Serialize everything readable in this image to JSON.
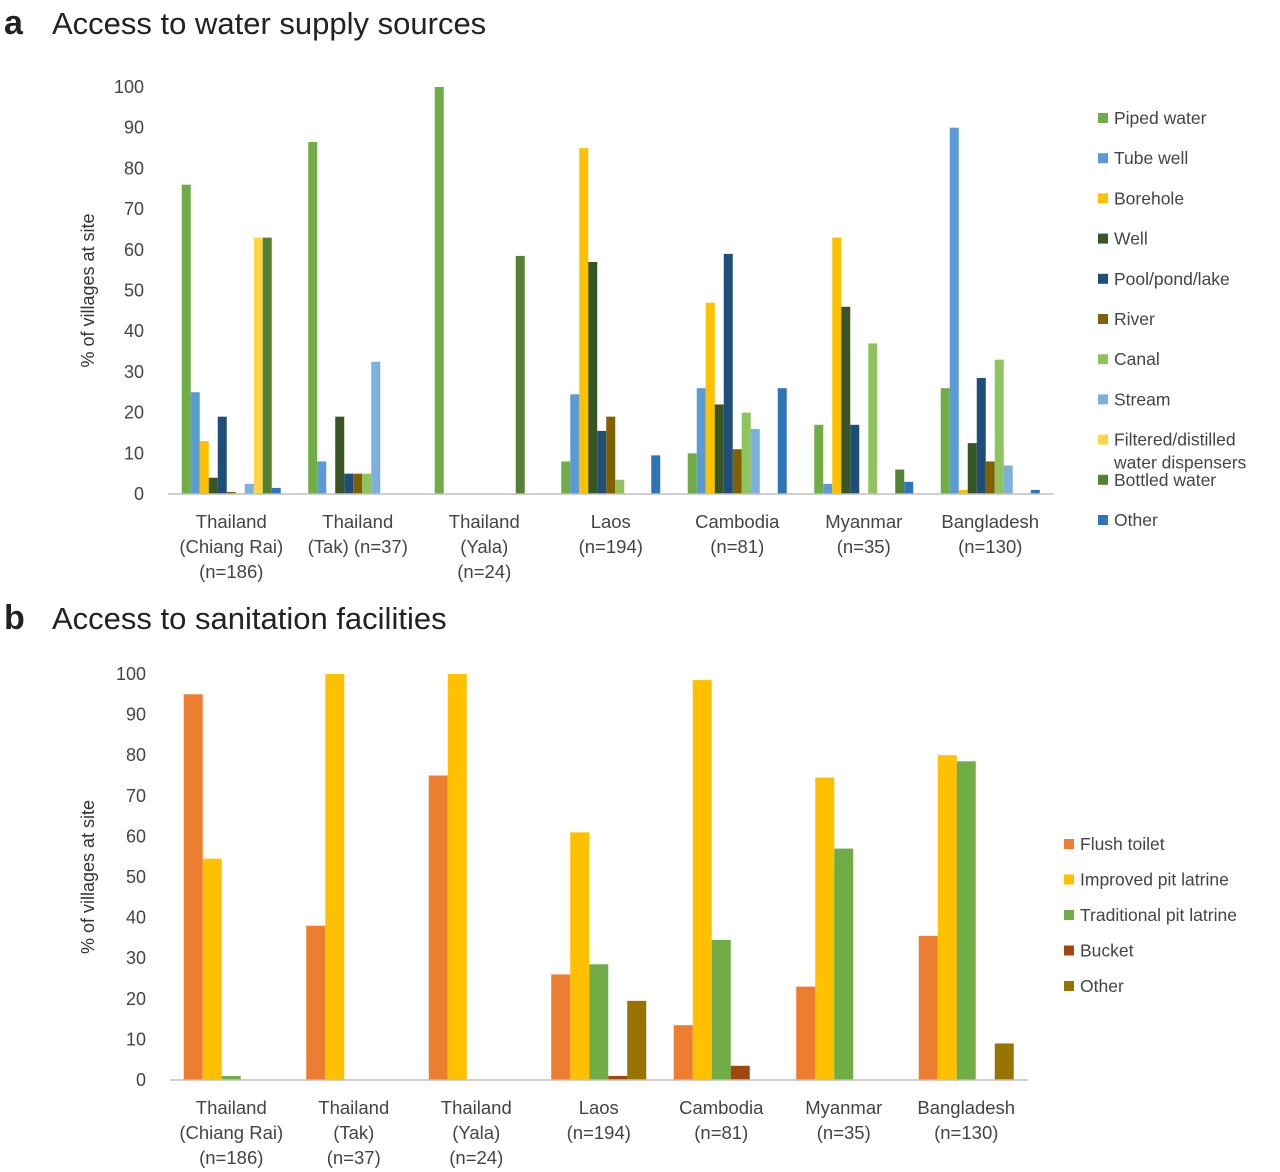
{
  "chart_data": [
    {
      "type": "bar",
      "panel": "a",
      "title": "Access to water supply sources",
      "ylabel": "% of villages at site",
      "ylim": [
        0,
        100
      ],
      "yticks": [
        0,
        10,
        20,
        30,
        40,
        50,
        60,
        70,
        80,
        90,
        100
      ],
      "grid": false,
      "legend_position": "right",
      "categories": [
        [
          "Thailand",
          "(Chiang Rai)",
          "(n=186)"
        ],
        [
          "Thailand",
          "(Tak) (n=37)"
        ],
        [
          "Thailand",
          "(Yala)",
          "(n=24)"
        ],
        [
          "Laos",
          "(n=194)"
        ],
        [
          "Cambodia",
          "(n=81)"
        ],
        [
          "Myanmar",
          "(n=35)"
        ],
        [
          "Bangladesh",
          "(n=130)"
        ]
      ],
      "series": [
        {
          "name": "Piped water",
          "color": "#70ad47",
          "values": [
            76,
            86.5,
            100,
            8,
            10,
            17,
            26
          ]
        },
        {
          "name": "Tube well",
          "color": "#5b9bd5",
          "values": [
            25,
            8,
            0,
            24.5,
            26,
            2.5,
            90
          ]
        },
        {
          "name": "Borehole",
          "color": "#ffc000",
          "values": [
            13,
            0,
            0,
            85,
            47,
            63,
            1
          ]
        },
        {
          "name": "Well",
          "color": "#375623",
          "values": [
            4,
            19,
            0,
            57,
            22,
            46,
            12.5
          ]
        },
        {
          "name": "Pool/pond/lake",
          "color": "#1f4e79",
          "values": [
            19,
            5,
            0,
            15.5,
            59,
            17,
            28.5
          ]
        },
        {
          "name": "River",
          "color": "#806000",
          "values": [
            0.5,
            5,
            0,
            19,
            11,
            0,
            8
          ]
        },
        {
          "name": "Canal",
          "color": "#8fc35d",
          "values": [
            0,
            5,
            0,
            3.5,
            20,
            37,
            33
          ]
        },
        {
          "name": "Stream",
          "color": "#7eb0de",
          "values": [
            2.5,
            32.5,
            0,
            0,
            16,
            0,
            7
          ]
        },
        {
          "name": "Filtered/distilled water dispensers",
          "color": "#ffd447",
          "values": [
            63,
            0,
            0,
            0,
            0,
            0,
            0
          ]
        },
        {
          "name": "Bottled water",
          "color": "#548235",
          "values": [
            63,
            0,
            58.5,
            0,
            0,
            6,
            0
          ]
        },
        {
          "name": "Other",
          "color": "#2e75b6",
          "values": [
            1.5,
            0,
            0,
            9.5,
            26,
            3,
            1
          ]
        }
      ],
      "legend_labels": [
        [
          "Piped water"
        ],
        [
          "Tube well"
        ],
        [
          "Borehole"
        ],
        [
          "Well"
        ],
        [
          "Pool/pond/lake"
        ],
        [
          "River"
        ],
        [
          "Canal"
        ],
        [
          "Stream"
        ],
        [
          "Filtered/distilled",
          "water dispensers"
        ],
        [
          "Bottled water"
        ],
        [
          "Other"
        ]
      ]
    },
    {
      "type": "bar",
      "panel": "b",
      "title": "Access to sanitation facilities",
      "ylabel": "% of villages at site",
      "ylim": [
        0,
        100
      ],
      "yticks": [
        0,
        10,
        20,
        30,
        40,
        50,
        60,
        70,
        80,
        90,
        100
      ],
      "grid": false,
      "legend_position": "right",
      "categories": [
        [
          "Thailand",
          "(Chiang Rai)",
          "(n=186)"
        ],
        [
          "Thailand",
          "(Tak)",
          "(n=37)"
        ],
        [
          "Thailand",
          "(Yala)",
          "(n=24)"
        ],
        [
          "Laos",
          "(n=194)"
        ],
        [
          "Cambodia",
          "(n=81)"
        ],
        [
          "Myanmar",
          "(n=35)"
        ],
        [
          "Bangladesh",
          "(n=130)"
        ]
      ],
      "series": [
        {
          "name": "Flush toilet",
          "color": "#ed7d31",
          "values": [
            95,
            38,
            75,
            26,
            13.5,
            23,
            35.5
          ]
        },
        {
          "name": "Improved pit latrine",
          "color": "#ffc000",
          "values": [
            54.5,
            100,
            100,
            61,
            98.5,
            74.5,
            80
          ]
        },
        {
          "name": "Traditional pit latrine",
          "color": "#70ad47",
          "values": [
            1,
            0,
            0,
            28.5,
            34.5,
            57,
            78.5
          ]
        },
        {
          "name": "Bucket",
          "color": "#9e480e",
          "values": [
            0,
            0,
            0,
            1,
            3.5,
            0,
            0
          ]
        },
        {
          "name": "Other",
          "color": "#997300",
          "values": [
            0,
            0,
            0,
            19.5,
            0,
            0,
            9
          ]
        }
      ],
      "legend_labels": [
        [
          "Flush toilet"
        ],
        [
          "Improved pit latrine"
        ],
        [
          "Traditional pit latrine"
        ],
        [
          "Bucket"
        ],
        [
          "Other"
        ]
      ]
    }
  ],
  "panel_a": {
    "letter": "a",
    "title": "Access to water supply sources"
  },
  "panel_b": {
    "letter": "b",
    "title": "Access to sanitation facilities"
  }
}
